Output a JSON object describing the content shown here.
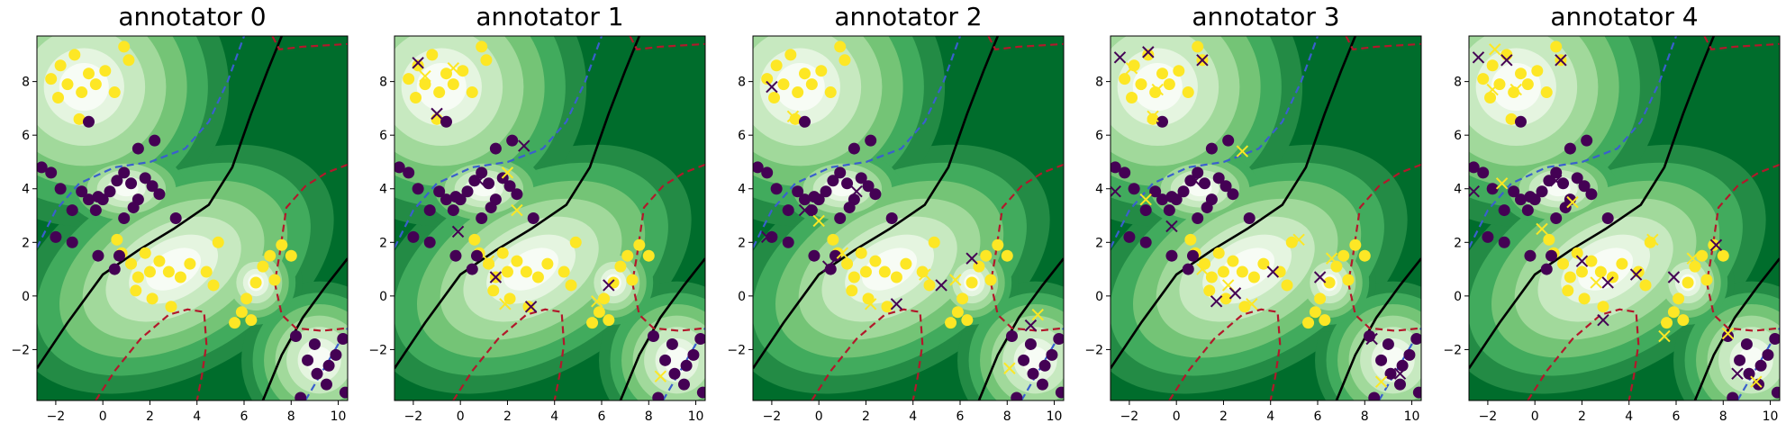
{
  "figure": {
    "panel_titles": [
      "annotator 0",
      "annotator 1",
      "annotator 2",
      "annotator 3",
      "annotator 4"
    ]
  },
  "colors": {
    "class0": "#440154",
    "class1": "#fde725",
    "boundary": "#000000",
    "upper_contour": "#3a5fcd",
    "lower_contour": "#b2182b",
    "contour_fill": [
      "#f7fcf5",
      "#e5f5e0",
      "#c7e9c0",
      "#a1d99b",
      "#74c476",
      "#41ab5d",
      "#238b45",
      "#006d2c"
    ]
  },
  "chart_data": {
    "type": "scatter",
    "title": "",
    "xlabel": "",
    "ylabel": "",
    "xlim": [
      -2.8,
      10.4
    ],
    "ylim": [
      -3.9,
      9.7
    ],
    "xticks": [
      -2,
      0,
      2,
      4,
      6,
      8,
      10
    ],
    "yticks": [
      -2,
      0,
      2,
      4,
      6,
      8
    ],
    "xtick_labels": [
      "−2",
      "0",
      "2",
      "4",
      "6",
      "8",
      "10"
    ],
    "ytick_labels": [
      "−2",
      "0",
      "2",
      "4",
      "6",
      "8"
    ],
    "grid": false,
    "legend": "none",
    "background": "filled green contour map",
    "lines": [
      {
        "style": "solid",
        "color": "#000000",
        "points": [
          [
            -2.8,
            -2.7
          ],
          [
            -1.5,
            -1.0
          ],
          [
            0,
            0.8
          ],
          [
            1.5,
            1.7
          ],
          [
            3,
            2.5
          ],
          [
            4.5,
            3.4
          ],
          [
            5.5,
            4.8
          ],
          [
            6.3,
            6.8
          ],
          [
            7.0,
            8.4
          ],
          [
            7.6,
            9.7
          ]
        ]
      },
      {
        "style": "solid",
        "color": "#000000",
        "points": [
          [
            6.8,
            -3.9
          ],
          [
            7.6,
            -2.2
          ],
          [
            8.5,
            -0.8
          ],
          [
            9.5,
            0.4
          ],
          [
            10.4,
            1.4
          ]
        ]
      },
      {
        "style": "dashed",
        "color": "#3a5fcd",
        "points": [
          [
            -2.8,
            1.8
          ],
          [
            -2.0,
            3.2
          ],
          [
            -1.0,
            4.2
          ],
          [
            0.5,
            4.8
          ],
          [
            2,
            5.0
          ],
          [
            3.5,
            5.5
          ],
          [
            4.5,
            6.5
          ],
          [
            5.3,
            8.0
          ],
          [
            6.0,
            9.7
          ]
        ]
      },
      {
        "style": "dashed",
        "color": "#3a5fcd",
        "points": [
          [
            8.6,
            -3.9
          ],
          [
            9.4,
            -2.7
          ],
          [
            10.4,
            -1.2
          ]
        ]
      },
      {
        "style": "dashed",
        "color": "#b2182b",
        "points": [
          [
            7.2,
            9.7
          ],
          [
            7.5,
            9.2
          ],
          [
            8.5,
            9.3
          ],
          [
            10.4,
            9.4
          ]
        ]
      },
      {
        "style": "dashed",
        "color": "#b2182b",
        "points": [
          [
            10.4,
            4.9
          ],
          [
            9.5,
            4.6
          ],
          [
            8.6,
            4.1
          ],
          [
            7.8,
            3.3
          ],
          [
            7.5,
            1.5
          ],
          [
            7.3,
            0.5
          ],
          [
            7.6,
            -0.7
          ],
          [
            8.2,
            -1.2
          ],
          [
            9.3,
            -1.3
          ],
          [
            10.4,
            -1.2
          ]
        ]
      },
      {
        "style": "dashed",
        "color": "#b2182b",
        "points": [
          [
            -0.3,
            -3.9
          ],
          [
            0.5,
            -2.8
          ],
          [
            1.6,
            -1.6
          ],
          [
            2.8,
            -0.7
          ],
          [
            3.6,
            -0.5
          ],
          [
            4.3,
            -0.6
          ],
          [
            4.4,
            -1.8
          ],
          [
            4.2,
            -3.0
          ],
          [
            4.0,
            -3.9
          ]
        ]
      }
    ],
    "class1_points": [
      [
        -2.2,
        8.1
      ],
      [
        -1.8,
        8.6
      ],
      [
        -1.5,
        7.9
      ],
      [
        -1.2,
        9.0
      ],
      [
        -0.9,
        7.6
      ],
      [
        -0.6,
        8.3
      ],
      [
        -0.3,
        7.9
      ],
      [
        0.1,
        8.4
      ],
      [
        -1.0,
        6.6
      ],
      [
        0.5,
        7.6
      ],
      [
        -1.9,
        7.4
      ],
      [
        0.9,
        9.3
      ],
      [
        1.1,
        8.8
      ],
      [
        0.6,
        2.1
      ],
      [
        0.8,
        1.6
      ],
      [
        1.2,
        1.2
      ],
      [
        1.5,
        0.7
      ],
      [
        1.8,
        1.6
      ],
      [
        2.0,
        0.9
      ],
      [
        2.4,
        1.3
      ],
      [
        2.8,
        0.9
      ],
      [
        1.4,
        0.2
      ],
      [
        2.1,
        -0.1
      ],
      [
        2.9,
        -0.4
      ],
      [
        3.3,
        0.7
      ],
      [
        3.7,
        1.2
      ],
      [
        4.4,
        0.9
      ],
      [
        4.7,
        0.4
      ],
      [
        4.9,
        2.0
      ],
      [
        5.6,
        -1.0
      ],
      [
        5.9,
        -0.6
      ],
      [
        6.1,
        -0.1
      ],
      [
        6.5,
        0.5
      ],
      [
        6.8,
        1.1
      ],
      [
        7.1,
        1.5
      ],
      [
        7.3,
        0.6
      ],
      [
        7.6,
        1.9
      ],
      [
        8.0,
        1.5
      ],
      [
        6.3,
        -0.9
      ]
    ],
    "class0_points": [
      [
        -2.6,
        4.8
      ],
      [
        -2.2,
        4.6
      ],
      [
        -1.8,
        4.0
      ],
      [
        -2.0,
        2.2
      ],
      [
        -1.3,
        3.2
      ],
      [
        -0.9,
        3.9
      ],
      [
        -0.6,
        3.6
      ],
      [
        -0.3,
        3.2
      ],
      [
        0,
        3.6
      ],
      [
        0.3,
        3.9
      ],
      [
        0.6,
        4.3
      ],
      [
        0.9,
        4.6
      ],
      [
        1.2,
        4.2
      ],
      [
        1.5,
        3.6
      ],
      [
        1.8,
        4.4
      ],
      [
        2.1,
        4.1
      ],
      [
        2.4,
        3.8
      ],
      [
        1.3,
        3.3
      ],
      [
        0.9,
        2.9
      ],
      [
        0.7,
        1.5
      ],
      [
        0.5,
        1.0
      ],
      [
        -0.2,
        3.7
      ],
      [
        -0.6,
        6.5
      ],
      [
        1.5,
        5.5
      ],
      [
        2.2,
        5.8
      ],
      [
        3.1,
        2.9
      ],
      [
        -1.3,
        2.0
      ],
      [
        -0.2,
        1.5
      ],
      [
        8.2,
        -1.5
      ],
      [
        8.7,
        -2.4
      ],
      [
        9.1,
        -2.9
      ],
      [
        9.5,
        -3.3
      ],
      [
        9.9,
        -2.2
      ],
      [
        10.2,
        -1.6
      ],
      [
        8.4,
        -3.8
      ],
      [
        9.0,
        -1.8
      ],
      [
        10.3,
        -3.6
      ],
      [
        9.6,
        -2.6
      ]
    ],
    "crosses_by_annotator": [
      [],
      [
        [
          -1.8,
          8.7
        ],
        [
          -1.5,
          8.2
        ],
        [
          -1.0,
          6.8
        ],
        [
          -0.3,
          8.5
        ],
        [
          0.8,
          4.3
        ],
        [
          1.2,
          1.3
        ],
        [
          1.5,
          0.7
        ],
        [
          1.9,
          -0.3
        ],
        [
          3.0,
          -0.4
        ],
        [
          5.8,
          -0.2
        ],
        [
          6.3,
          0.4
        ],
        [
          2.4,
          3.2
        ],
        [
          2.7,
          5.6
        ],
        [
          8.5,
          -3.0
        ],
        [
          -0.1,
          2.4
        ],
        [
          2.0,
          4.6
        ]
      ],
      [
        [
          -2.0,
          7.8
        ],
        [
          -1.1,
          6.7
        ],
        [
          -0.6,
          3.2
        ],
        [
          0,
          2.8
        ],
        [
          0.4,
          1.1
        ],
        [
          1.0,
          1.6
        ],
        [
          1.6,
          3.9
        ],
        [
          2.2,
          -0.3
        ],
        [
          3.3,
          -0.3
        ],
        [
          4.5,
          0.8
        ],
        [
          5.2,
          0.4
        ],
        [
          5.8,
          0.6
        ],
        [
          6.5,
          1.4
        ],
        [
          8.1,
          -2.7
        ],
        [
          9.0,
          -1.1
        ],
        [
          9.3,
          -0.7
        ],
        [
          -2.2,
          2.2
        ]
      ],
      [
        [
          -2.4,
          8.9
        ],
        [
          -1.9,
          8.5
        ],
        [
          -1.2,
          9.1
        ],
        [
          -0.8,
          7.7
        ],
        [
          1.1,
          8.8
        ],
        [
          -1.0,
          6.7
        ],
        [
          0.8,
          4.3
        ],
        [
          1.1,
          1.0
        ],
        [
          1.7,
          -0.2
        ],
        [
          2.2,
          0.4
        ],
        [
          2.5,
          0.1
        ],
        [
          3.2,
          -0.3
        ],
        [
          4.1,
          0.9
        ],
        [
          5.2,
          2.1
        ],
        [
          6.1,
          0.7
        ],
        [
          6.6,
          1.4
        ],
        [
          8.3,
          -1.6
        ],
        [
          8.7,
          -3.2
        ],
        [
          9.5,
          -2.9
        ],
        [
          -1.3,
          3.6
        ],
        [
          -2.6,
          3.9
        ],
        [
          2.8,
          5.4
        ],
        [
          -0.2,
          2.6
        ]
      ],
      [
        [
          -2.4,
          8.9
        ],
        [
          -1.7,
          9.2
        ],
        [
          -1.2,
          8.8
        ],
        [
          -0.8,
          7.7
        ],
        [
          1.1,
          8.8
        ],
        [
          -1.8,
          7.7
        ],
        [
          0.9,
          4.3
        ],
        [
          1.6,
          3.5
        ],
        [
          2.0,
          1.3
        ],
        [
          2.6,
          0.5
        ],
        [
          3.1,
          0.5
        ],
        [
          5.0,
          2.1
        ],
        [
          5.9,
          0.7
        ],
        [
          6.7,
          1.4
        ],
        [
          7.7,
          1.9
        ],
        [
          8.2,
          -1.4
        ],
        [
          8.6,
          -2.9
        ],
        [
          9.4,
          -3.2
        ],
        [
          4.3,
          0.8
        ],
        [
          -1.4,
          4.2
        ],
        [
          -2.6,
          3.9
        ],
        [
          0.3,
          2.5
        ],
        [
          2.9,
          -0.9
        ],
        [
          5.5,
          -1.5
        ]
      ]
    ]
  }
}
